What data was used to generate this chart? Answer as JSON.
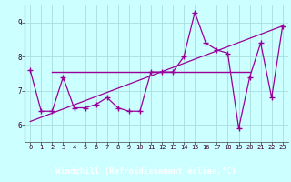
{
  "x": [
    0,
    1,
    2,
    3,
    4,
    5,
    6,
    7,
    8,
    9,
    10,
    11,
    12,
    13,
    14,
    15,
    16,
    17,
    18,
    19,
    20,
    21,
    22,
    23
  ],
  "line1": [
    7.6,
    6.4,
    6.4,
    7.4,
    6.5,
    6.5,
    6.6,
    6.8,
    6.5,
    6.4,
    6.4,
    7.55,
    7.55,
    7.55,
    8.0,
    9.3,
    8.4,
    8.2,
    8.1,
    5.9,
    7.4,
    8.4,
    6.8,
    8.9
  ],
  "line2_y": 7.55,
  "line2_xstart": 2,
  "line2_xend": 20,
  "line3_x": [
    0,
    23
  ],
  "line3_y": [
    6.1,
    8.9
  ],
  "color": "#990099",
  "bg_color": "#ccffff",
  "xlabel_bg": "#6633aa",
  "xlabel_text": "Windchill (Refroidissement éolien,°C)",
  "xlabel_color": "#ffffff",
  "ylim": [
    5.5,
    9.5
  ],
  "xlim": [
    -0.5,
    23.5
  ],
  "yticks": [
    6,
    7,
    8,
    9
  ],
  "xticks": [
    0,
    1,
    2,
    3,
    4,
    5,
    6,
    7,
    8,
    9,
    10,
    11,
    12,
    13,
    14,
    15,
    16,
    17,
    18,
    19,
    20,
    21,
    22,
    23
  ]
}
